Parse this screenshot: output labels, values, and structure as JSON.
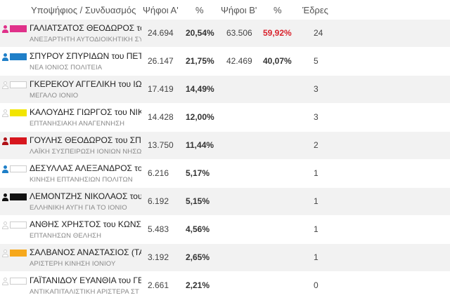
{
  "headers": {
    "candidate": "Υποψήφιος / Συνδυασμός",
    "votes_a": "Ψήφοι Α'",
    "pct_a": "%",
    "votes_b": "Ψήφοι Β'",
    "pct_b": "%",
    "seats": "Έδρες"
  },
  "rows": [
    {
      "name": "ΓΑΛΙΑΤΣΑΤΟΣ ΘΕΟΔΩΡΟΣ του",
      "party": "ΑΝΕΞΑΡΤΗΤΗ ΑΥΤΟΔΙΟΙΚΗΤΙΚΗ ΣΥ",
      "votes_a": "24.694",
      "pct_a": "20,54%",
      "votes_b": "63.506",
      "pct_b": "59,92%",
      "seats": "24",
      "icon": "person-icon",
      "icon_color": "#e0318a",
      "swatch_color": "#e0318a"
    },
    {
      "name": "ΣΠΥΡΟΥ ΣΠΥΡΙΔΩΝ του ΠΕΤΡ",
      "party": "ΝΕΑ ΙΟΝΙΟΣ ΠΟΛΙΤΕΙΑ",
      "votes_a": "26.147",
      "pct_a": "21,75%",
      "votes_b": "42.469",
      "pct_b": "40,07%",
      "seats": "5",
      "icon": "person-icon",
      "icon_color": "#1f7fc8",
      "swatch_color": "#1f7fc8"
    },
    {
      "name": "ΓΚΕΡΕΚΟΥ ΑΓΓΕΛΙΚΗ του ΙΩΑ",
      "party": "ΜΕΓΑΛΟ ΙΟΝΙΟ",
      "votes_a": "17.419",
      "pct_a": "14,49%",
      "votes_b": "",
      "pct_b": "",
      "seats": "3",
      "icon": "person-outline-icon",
      "icon_color": "",
      "swatch_color": ""
    },
    {
      "name": "ΚΑΛΟΥΔΗΣ ΓΙΩΡΓΟΣ του ΝΙΚ",
      "party": "ΕΠΤΑΝΗΣΙΑΚΗ ΑΝΑΓΕΝΝΗΣΗ",
      "votes_a": "14.428",
      "pct_a": "12,00%",
      "votes_b": "",
      "pct_b": "",
      "seats": "3",
      "icon": "person-outline-icon",
      "icon_color": "",
      "swatch_color": "#f2e500"
    },
    {
      "name": "ΓΟΥΛΗΣ ΘΕΟΔΩΡΟΣ του ΣΠΥΡ",
      "party": "ΛΑΪΚΗ ΣΥΣΠΕΙΡΩΣΗ ΙΟΝΙΩΝ ΝΗΣΩ",
      "votes_a": "13.750",
      "pct_a": "11,44%",
      "votes_b": "",
      "pct_b": "",
      "seats": "2",
      "icon": "person-icon",
      "icon_color": "#b01218",
      "swatch_color": "#d7161e"
    },
    {
      "name": "ΔΕΣΥΛΛΑΣ ΑΛΕΞΑΝΔΡΟΣ του",
      "party": "ΚΙΝΗΣΗ ΕΠΤΑΝΗΣΙΩΝ ΠΟΛΙΤΩΝ",
      "votes_a": "6.216",
      "pct_a": "5,17%",
      "votes_b": "",
      "pct_b": "",
      "seats": "1",
      "icon": "person-icon",
      "icon_color": "#1f7fc8",
      "swatch_color": ""
    },
    {
      "name": "ΛΕΜΟΝΤΖΗΣ ΝΙΚΟΛΑΟΣ του",
      "party": "ΕΛΛΗΝΙΚΗ ΑΥΓΗ ΓΙΑ ΤΟ ΙΟΝΙΟ",
      "votes_a": "6.192",
      "pct_a": "5,15%",
      "votes_b": "",
      "pct_b": "",
      "seats": "1",
      "icon": "person-icon",
      "icon_color": "#111111",
      "swatch_color": "#111111"
    },
    {
      "name": "ΑΝΘΗΣ ΧΡΗΣΤΟΣ του ΚΩΝΣΤ",
      "party": "ΕΠΤΑΝΗΣΩΝ ΘΕΛΗΣΗ",
      "votes_a": "5.483",
      "pct_a": "4,56%",
      "votes_b": "",
      "pct_b": "",
      "seats": "1",
      "icon": "person-outline-icon",
      "icon_color": "",
      "swatch_color": ""
    },
    {
      "name": "ΣΑΛΒΑΝΟΣ ΑΝΑΣΤΑΣΙΟΣ (ΤΑ",
      "party": "ΑΡΙΣΤΕΡΗ ΚΙΝΗΣΗ ΙΟΝΙΟΥ",
      "votes_a": "3.192",
      "pct_a": "2,65%",
      "votes_b": "",
      "pct_b": "",
      "seats": "1",
      "icon": "person-outline-icon",
      "icon_color": "",
      "swatch_color": "#f6a81c"
    },
    {
      "name": "ΓΑΪΤΑΝΙΔΟΥ ΕΥΑΝΘΙΑ του ΓΕ",
      "party": "ΑΝΤΙΚΑΠΙΤΑΛΙΣΤΙΚΗ ΑΡΙΣΤΕΡΑ ΣΤ",
      "votes_a": "2.661",
      "pct_a": "2,21%",
      "votes_b": "",
      "pct_b": "",
      "seats": "0",
      "icon": "person-outline-icon",
      "icon_color": "",
      "swatch_color": ""
    }
  ],
  "colors": {
    "highlight_pct": "#d9232d",
    "alt_row": "#f2f2f2"
  }
}
